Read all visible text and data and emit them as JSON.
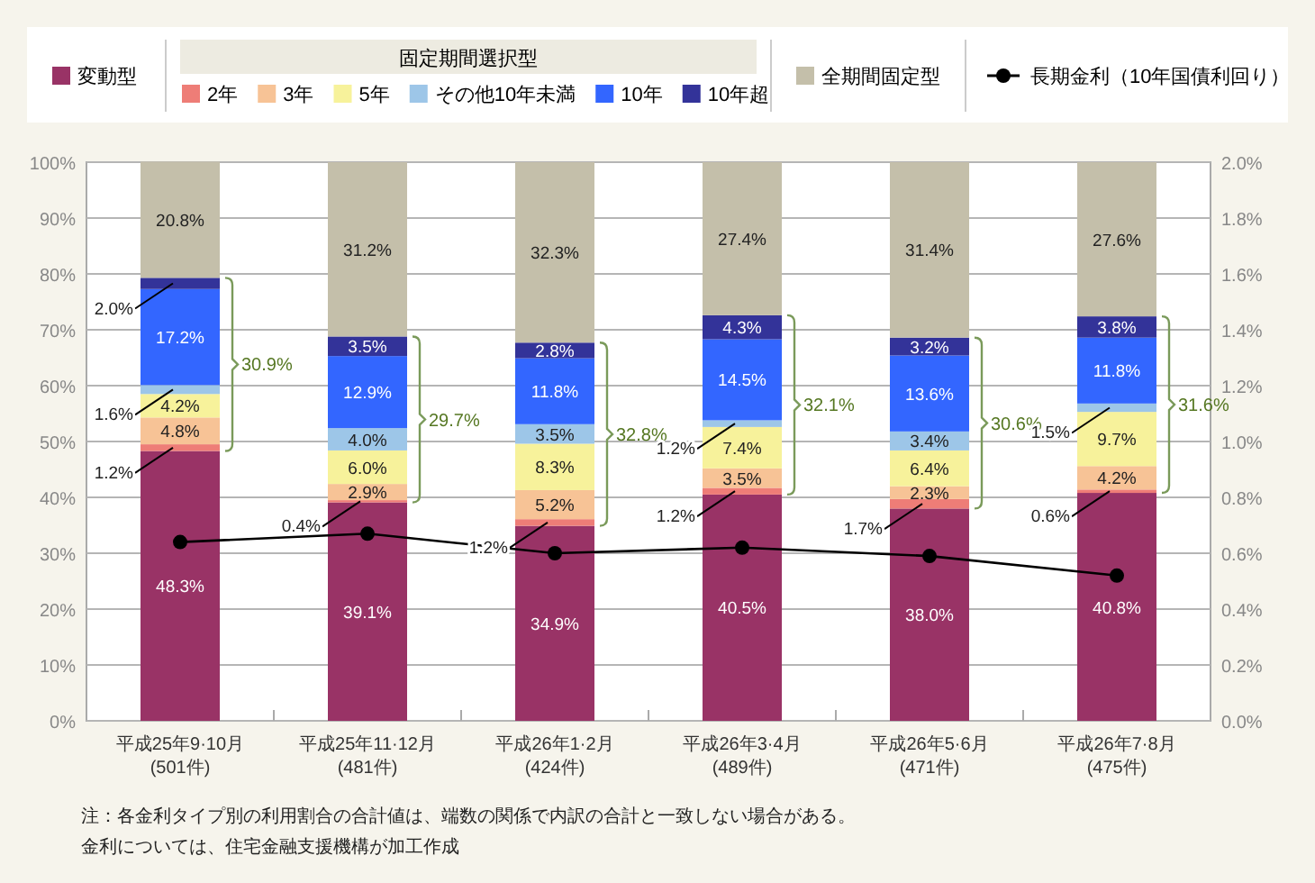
{
  "chart_data": {
    "type": "bar",
    "stacked": true,
    "categories": [
      "平成25年9·10月\n(501件)",
      "平成25年11·12月\n(481件)",
      "平成26年1·2月\n(424件)",
      "平成26年3·4月\n(489件)",
      "平成26年5·6月\n(471件)",
      "平成26年7·8月\n(475件)"
    ],
    "legend_title": "固定期間選択型",
    "series": [
      {
        "name": "変動型",
        "color": "#993366",
        "values": [
          48.3,
          39.1,
          34.9,
          40.5,
          38.0,
          40.8
        ],
        "value_labels": [
          "48.3%",
          "39.1%",
          "34.9%",
          "40.5%",
          "38.0%",
          "40.8%"
        ]
      },
      {
        "name": "2年",
        "color": "#ee7d77",
        "values": [
          1.2,
          0.4,
          1.2,
          1.2,
          1.7,
          0.6
        ],
        "value_labels": [
          "1.2%",
          "0.4%",
          "1.2%",
          "1.2%",
          "1.7%",
          "0.6%"
        ]
      },
      {
        "name": "3年",
        "color": "#f7c396",
        "values": [
          4.8,
          2.9,
          5.2,
          3.5,
          2.3,
          4.2
        ],
        "value_labels": [
          "4.8%",
          "2.9%",
          "5.2%",
          "3.5%",
          "2.3%",
          "4.2%"
        ]
      },
      {
        "name": "5年",
        "color": "#f7f29b",
        "values": [
          4.2,
          6.0,
          8.3,
          7.4,
          6.4,
          9.7
        ],
        "value_labels": [
          "4.2%",
          "6.0%",
          "8.3%",
          "7.4%",
          "6.4%",
          "9.7%"
        ]
      },
      {
        "name": "その他10年未満",
        "color": "#9dc6e8",
        "values": [
          1.6,
          4.0,
          3.5,
          1.2,
          3.4,
          1.5
        ],
        "value_labels": [
          "1.6%",
          "4.0%",
          "3.5%",
          "1.2%",
          "3.4%",
          "1.5%"
        ]
      },
      {
        "name": "10年",
        "color": "#3366ff",
        "values": [
          17.2,
          12.9,
          11.8,
          14.5,
          13.6,
          11.8
        ],
        "value_labels": [
          "17.2%",
          "12.9%",
          "11.8%",
          "14.5%",
          "13.6%",
          "11.8%"
        ]
      },
      {
        "name": "10年超",
        "color": "#333399",
        "values": [
          2.0,
          3.5,
          2.8,
          4.3,
          3.2,
          3.8
        ],
        "value_labels": [
          "2.0%",
          "3.5%",
          "2.8%",
          "4.3%",
          "3.2%",
          "3.8%"
        ]
      },
      {
        "name": "全期間固定型",
        "color": "#c4bfaa",
        "values": [
          20.8,
          31.2,
          32.3,
          27.4,
          31.4,
          27.6
        ],
        "value_labels": [
          "20.8%",
          "31.2%",
          "32.3%",
          "27.4%",
          "31.4%",
          "27.6%"
        ]
      },
      {
        "name": "長期金利（10年国債利回り）",
        "type": "line",
        "axis": "y2",
        "color": "#000000",
        "marker": "circle",
        "values": [
          0.64,
          0.67,
          0.6,
          0.62,
          0.59,
          0.52
        ]
      }
    ],
    "ylim": [
      0,
      100
    ],
    "yticks": [
      {
        "value": 0,
        "label": "0%"
      },
      {
        "value": 10,
        "label": "10%"
      },
      {
        "value": 20,
        "label": "20%"
      },
      {
        "value": 30,
        "label": "30%"
      },
      {
        "value": 40,
        "label": "40%"
      },
      {
        "value": 50,
        "label": "50%"
      },
      {
        "value": 60,
        "label": "60%"
      },
      {
        "value": 70,
        "label": "70%"
      },
      {
        "value": 80,
        "label": "80%"
      },
      {
        "value": 90,
        "label": "90%"
      },
      {
        "value": 100,
        "label": "100%"
      }
    ],
    "y2lim": [
      0,
      2
    ],
    "y2ticks": [
      {
        "value": 0,
        "label": "0.0%"
      },
      {
        "value": 0.2,
        "label": "0.2%"
      },
      {
        "value": 0.4,
        "label": "0.4%"
      },
      {
        "value": 0.6,
        "label": "0.6%"
      },
      {
        "value": 0.8,
        "label": "0.8%"
      },
      {
        "value": 1.0,
        "label": "1.0%"
      },
      {
        "value": 1.2,
        "label": "1.2%"
      },
      {
        "value": 1.4,
        "label": "1.4%"
      },
      {
        "value": 1.6,
        "label": "1.6%"
      },
      {
        "value": 1.8,
        "label": "1.8%"
      },
      {
        "value": 2.0,
        "label": "2.0%"
      }
    ],
    "grid": "y",
    "legend": "top",
    "annotations": [
      "30.9%",
      "29.7%",
      "32.8%",
      "32.1%",
      "30.6%",
      "31.6%",
      "注：各金利タイプ別の利用割合の合計値は、端数の関係で内訳の合計と一致しない場合がある。",
      "金利については、住宅金融支援機構が加工作成"
    ]
  }
}
